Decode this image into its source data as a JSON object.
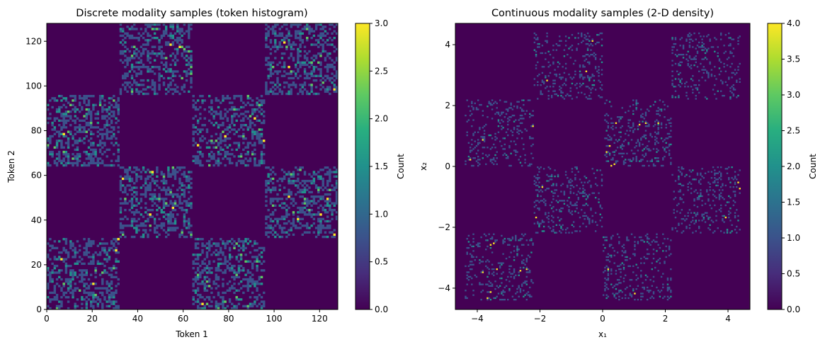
{
  "chart_data": [
    {
      "type": "heatmap",
      "title": "Discrete modality samples (token histogram)",
      "xlabel": "Token 1",
      "ylabel": "Token 2",
      "xlim": [
        0,
        128
      ],
      "ylim": [
        0,
        128
      ],
      "x_ticks": [
        0,
        20,
        40,
        60,
        80,
        100,
        120
      ],
      "y_ticks": [
        0,
        20,
        40,
        60,
        80,
        100,
        120
      ],
      "bins": [
        128,
        128
      ],
      "checker_block_size": 32,
      "occupied_blocks": [
        {
          "x": [
            0,
            32
          ],
          "y": [
            0,
            32
          ]
        },
        {
          "x": [
            64,
            96
          ],
          "y": [
            0,
            32
          ]
        },
        {
          "x": [
            32,
            64
          ],
          "y": [
            32,
            64
          ]
        },
        {
          "x": [
            96,
            128
          ],
          "y": [
            32,
            64
          ]
        },
        {
          "x": [
            0,
            32
          ],
          "y": [
            64,
            96
          ]
        },
        {
          "x": [
            64,
            96
          ],
          "y": [
            64,
            96
          ]
        },
        {
          "x": [
            32,
            64
          ],
          "y": [
            96,
            128
          ]
        },
        {
          "x": [
            96,
            128
          ],
          "y": [
            96,
            128
          ]
        }
      ],
      "colorbar": {
        "label": "Count",
        "min": 0,
        "max": 3,
        "ticks": [
          "0.0",
          "0.5",
          "1.0",
          "1.5",
          "2.0",
          "2.5",
          "3.0"
        ],
        "colormap": "viridis"
      }
    },
    {
      "type": "heatmap",
      "title": "Continuous modality samples (2-D density)",
      "xlabel": "x₁",
      "ylabel": "x₂",
      "xlim": [
        -4.7,
        4.7
      ],
      "ylim": [
        -4.7,
        4.7
      ],
      "x_ticks": [
        -4,
        -2,
        0,
        2,
        4
      ],
      "y_ticks": [
        -4,
        -2,
        0,
        2,
        4
      ],
      "x_tick_labels": [
        "−4",
        "−2",
        "0",
        "2",
        "4"
      ],
      "y_tick_labels": [
        "−4",
        "−2",
        "0",
        "2",
        "4"
      ],
      "checker_cells": [
        {
          "x": [
            -4.4,
            -2.2
          ],
          "y": [
            -4.4,
            -2.2
          ]
        },
        {
          "x": [
            0,
            2.2
          ],
          "y": [
            -4.4,
            -2.2
          ]
        },
        {
          "x": [
            -2.2,
            0
          ],
          "y": [
            -2.2,
            0
          ]
        },
        {
          "x": [
            2.2,
            4.4
          ],
          "y": [
            -2.2,
            0
          ]
        },
        {
          "x": [
            -4.4,
            -2.2
          ],
          "y": [
            0,
            2.2
          ]
        },
        {
          "x": [
            0,
            2.2
          ],
          "y": [
            0,
            2.2
          ]
        },
        {
          "x": [
            -2.2,
            0
          ],
          "y": [
            2.2,
            4.4
          ]
        },
        {
          "x": [
            2.2,
            4.4
          ],
          "y": [
            2.2,
            4.4
          ]
        }
      ],
      "colorbar": {
        "label": "Count",
        "min": 0,
        "max": 4,
        "ticks": [
          "0.0",
          "0.5",
          "1.0",
          "1.5",
          "2.0",
          "2.5",
          "3.0",
          "3.5",
          "4.0"
        ],
        "colormap": "viridis"
      }
    }
  ]
}
